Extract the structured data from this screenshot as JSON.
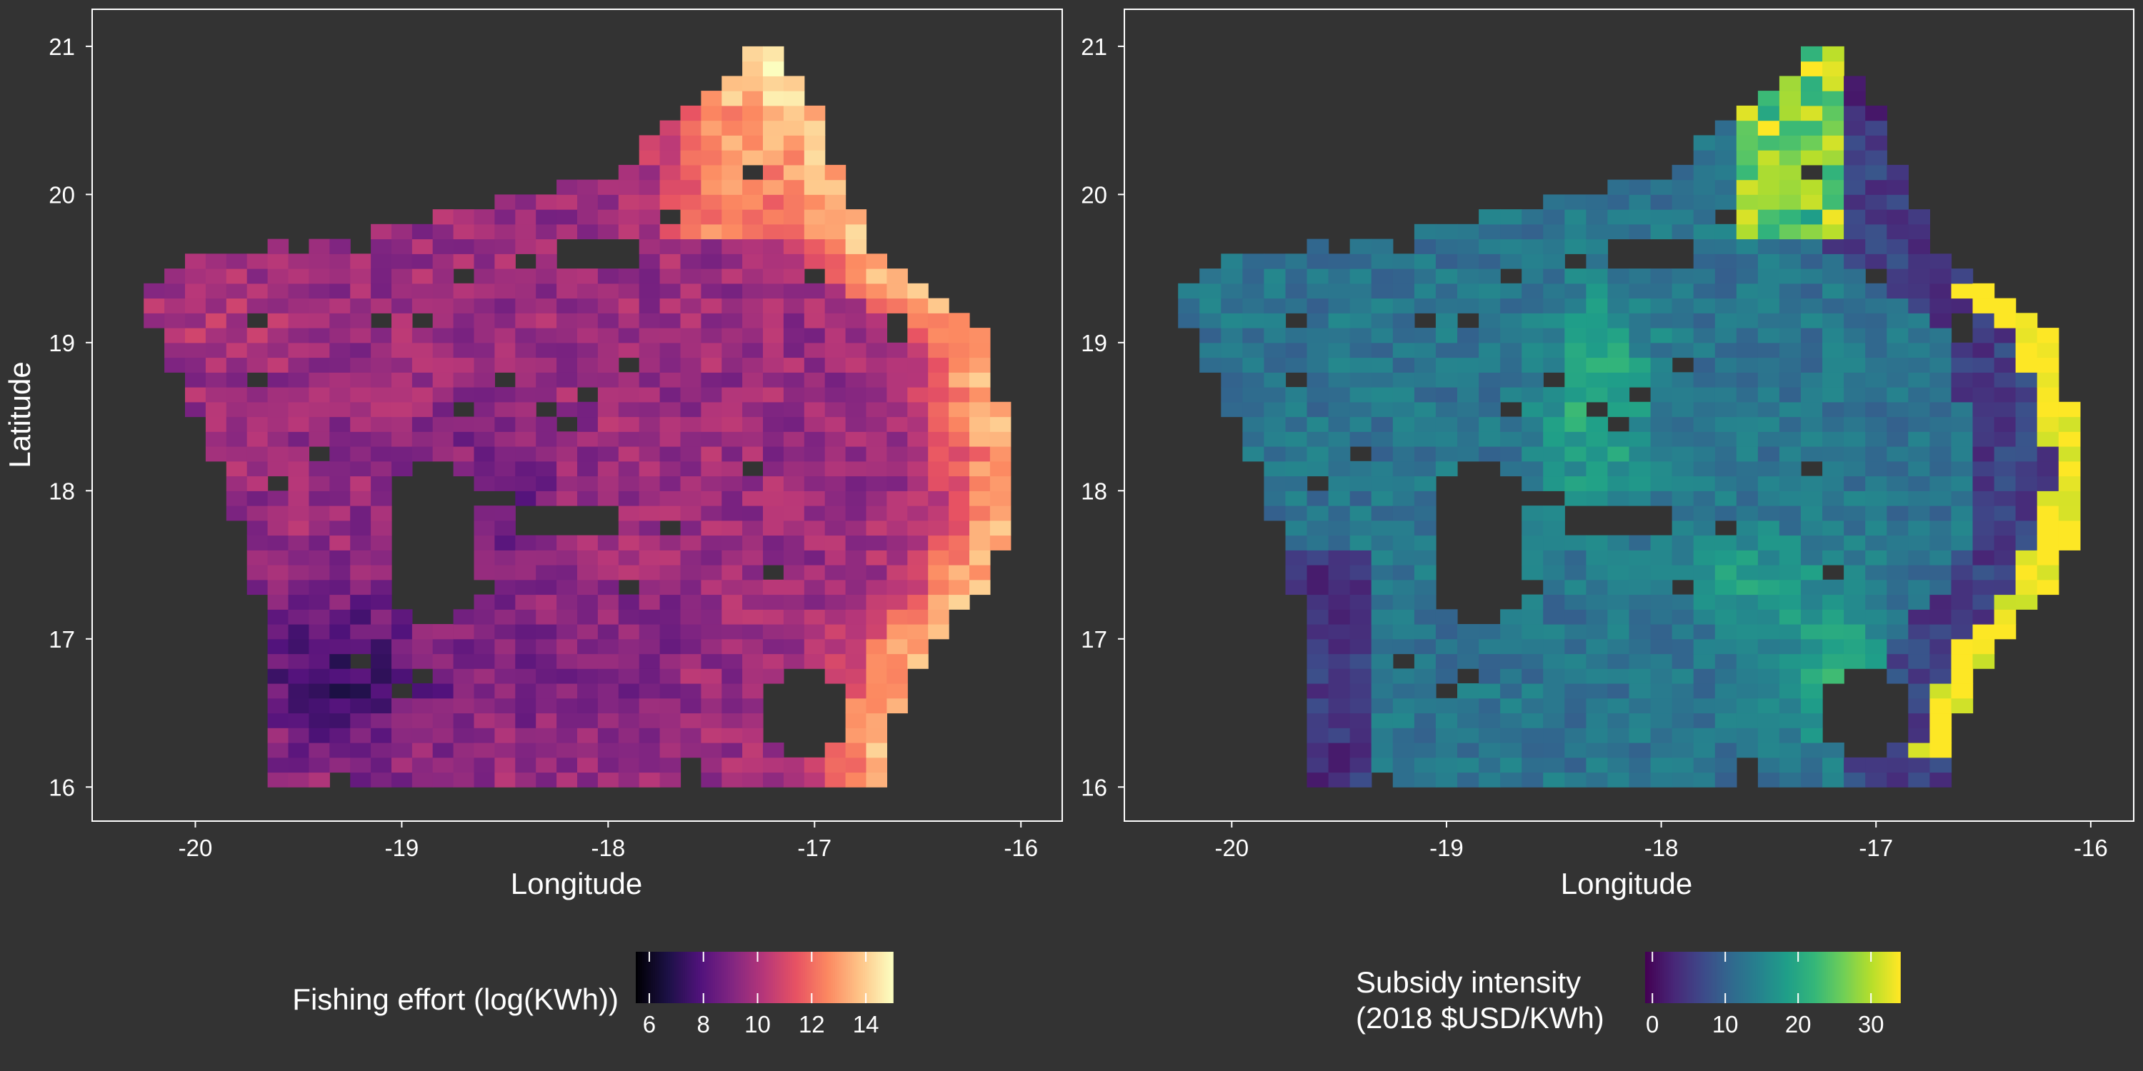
{
  "figure": {
    "background": "#333333",
    "panel_border": "#ffffff"
  },
  "chart_data": [
    {
      "type": "heatmap",
      "panel": "left",
      "xlabel": "Longitude",
      "ylabel": "Latitude",
      "xlim": [
        -20.5,
        -15.8
      ],
      "ylim": [
        15.77,
        21.25
      ],
      "x_ticks": [
        -20,
        -19,
        -18,
        -17,
        -16
      ],
      "x_tick_labels": [
        "-20",
        "-19",
        "-18",
        "-17",
        "-16"
      ],
      "y_ticks": [
        16,
        17,
        18,
        19,
        20,
        21
      ],
      "y_tick_labels": [
        "16",
        "17",
        "18",
        "19",
        "20",
        "21"
      ],
      "grid": false,
      "cell_size_degrees": 0.1,
      "colormap": "magma",
      "colormap_stops": [
        "#000004",
        "#1d1147",
        "#51127c",
        "#822681",
        "#b73779",
        "#e75263",
        "#fc8961",
        "#fec488",
        "#fcfdbf"
      ],
      "legend": {
        "title": "Fishing effort (log(KWh))",
        "position": "bottom",
        "range": [
          5.5,
          15.0
        ],
        "ticks": [
          6,
          8,
          10,
          12,
          14
        ],
        "tick_labels": [
          "6",
          "8",
          "10",
          "12",
          "14"
        ]
      },
      "value_description": "gridded fishing effort; low (about 6-9) in western interior and southwest, mid (about 9-11.5) across the central band, highest (about 13-15) along the eastern coastal strip near -17.0 to -16.3 and the northern lobe near -17.5, 20.3"
    },
    {
      "type": "heatmap",
      "panel": "right",
      "xlabel": "Longitude",
      "ylabel": "",
      "xlim": [
        -20.5,
        -15.8
      ],
      "ylim": [
        15.77,
        21.25
      ],
      "x_ticks": [
        -20,
        -19,
        -18,
        -17,
        -16
      ],
      "x_tick_labels": [
        "-20",
        "-19",
        "-18",
        "-17",
        "-16"
      ],
      "y_ticks": [
        16,
        17,
        18,
        19,
        20,
        21
      ],
      "y_tick_labels": [
        "16",
        "17",
        "18",
        "19",
        "20",
        "21"
      ],
      "grid": false,
      "cell_size_degrees": 0.1,
      "colormap": "viridis",
      "colormap_stops": [
        "#440154",
        "#482878",
        "#3e4989",
        "#31688e",
        "#26828e",
        "#1f9e89",
        "#35b779",
        "#6ece58",
        "#b5de2b",
        "#fde725"
      ],
      "legend": {
        "title_lines": [
          "Subsidy intensity",
          "(2018 $USD/KWh)"
        ],
        "position": "bottom",
        "range": [
          -1,
          34
        ],
        "ticks": [
          0,
          10,
          20,
          30
        ],
        "tick_labels": [
          "0",
          "10",
          "20",
          "30"
        ]
      },
      "value_description": "gridded subsidy intensity; mostly about 10-15 across the western and central area, patches of about 20-28 in the centre, low (about 3-8) in the southwest and near the east coast, saturated (about 33+) along the eastern coastal edge and in the northern lobe"
    }
  ]
}
